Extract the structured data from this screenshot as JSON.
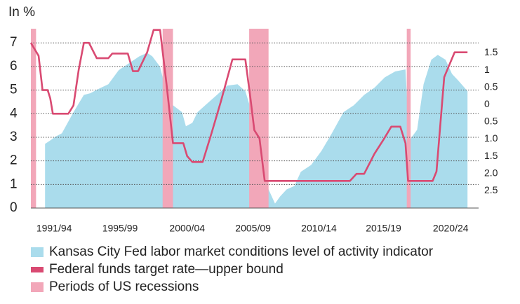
{
  "chart_data": {
    "type": "line",
    "y_label": "In %",
    "xlim": [
      1991.0,
      2024.9
    ],
    "ylim": [
      0,
      7.6
    ],
    "y2lim": [
      -3.0,
      2.2
    ],
    "yticks": [
      0,
      1,
      2,
      3,
      4,
      5,
      6,
      7
    ],
    "y2ticks": [
      1.5,
      1.0,
      0.5,
      0.0,
      {
        "value": -0.5,
        "label": "0.5"
      },
      {
        "value": -1.0,
        "label": "1.0"
      },
      {
        "value": -1.5,
        "label": "1.5"
      },
      {
        "value": -2.0,
        "label": "2.0"
      },
      {
        "value": -2.5,
        "label": "2.5"
      }
    ],
    "xticks": [
      {
        "value": 1992.8,
        "label": "1991/94"
      },
      {
        "value": 1997.9,
        "label": "1995/99"
      },
      {
        "value": 2003.1,
        "label": "2000/04"
      },
      {
        "value": 2008.2,
        "label": "2005/09"
      },
      {
        "value": 2013.3,
        "label": "2010/14"
      },
      {
        "value": 2018.3,
        "label": "2015/19"
      },
      {
        "value": 2023.5,
        "label": "2020/24"
      }
    ],
    "grid": true,
    "series": [
      {
        "name": "Kansas City Fed labor market conditions level of activity indicator",
        "type": "area",
        "axis": "y2",
        "color": "#aadcec",
        "x": [
          1992.1,
          1992.5,
          1992.9,
          1993.4,
          1993.7,
          1994.3,
          1995.1,
          1995.6,
          1996.2,
          1997.0,
          1997.8,
          1998.6,
          1999.4,
          2000.0,
          2000.4,
          2001.0,
          2001.6,
          2002.0,
          2002.7,
          2003.0,
          2003.5,
          2003.9,
          2004.5,
          2005.4,
          2006.2,
          2007.0,
          2007.6,
          2007.9,
          2008.6,
          2009.4,
          2009.9,
          2010.3,
          2010.8,
          2011.4,
          2011.9,
          2012.7,
          2013.5,
          2014.3,
          2015.2,
          2016.0,
          2016.8,
          2017.6,
          2018.4,
          2019.2,
          2020.0,
          2020.3,
          2020.9,
          2021.4,
          2022.0,
          2022.5,
          2023.1,
          2023.6,
          2024.1,
          2024.8
        ],
        "values": [
          -1.14,
          -1.04,
          -0.93,
          -0.83,
          -0.63,
          -0.22,
          0.28,
          0.33,
          0.45,
          0.59,
          1.0,
          1.2,
          1.4,
          1.5,
          1.4,
          1.1,
          0.18,
          -0.02,
          -0.22,
          -0.63,
          -0.53,
          -0.22,
          -0.02,
          0.28,
          0.55,
          0.59,
          0.39,
          0.02,
          -1.04,
          -2.46,
          -2.87,
          -2.66,
          -2.46,
          -2.36,
          -1.95,
          -1.75,
          -1.34,
          -0.83,
          -0.22,
          -0.02,
          0.28,
          0.49,
          0.79,
          0.96,
          1.02,
          -1.04,
          -0.73,
          0.59,
          1.3,
          1.44,
          1.3,
          0.89,
          0.69,
          0.39
        ]
      },
      {
        "name": "Federal funds target rate—upper bound",
        "type": "line",
        "color": "#d94a72",
        "x": [
          1991.0,
          1991.6,
          1991.9,
          1992.3,
          1992.5,
          1992.7,
          1993.9,
          1994.3,
          1994.7,
          1995.1,
          1995.5,
          1996.1,
          1997.0,
          1997.3,
          1998.5,
          1998.9,
          1999.3,
          2000.0,
          2000.5,
          2001.0,
          2001.5,
          2002.0,
          2002.8,
          2003.1,
          2003.5,
          2004.3,
          2005.0,
          2005.7,
          2006.6,
          2007.6,
          2008.0,
          2008.3,
          2008.7,
          2009.1,
          2015.7,
          2016.2,
          2016.8,
          2017.6,
          2018.3,
          2018.9,
          2019.6,
          2020.0,
          2020.2,
          2022.1,
          2022.4,
          2023.0,
          2023.8,
          2024.8
        ],
        "values": [
          7.0,
          6.45,
          5.0,
          5.0,
          4.65,
          4.0,
          4.0,
          4.35,
          5.85,
          7.0,
          7.0,
          6.35,
          6.35,
          6.55,
          6.55,
          5.8,
          5.8,
          6.6,
          7.55,
          7.55,
          5.25,
          2.75,
          2.75,
          2.2,
          1.95,
          1.95,
          3.2,
          4.5,
          6.3,
          6.3,
          4.65,
          3.3,
          2.95,
          1.15,
          1.15,
          1.45,
          1.45,
          2.3,
          2.9,
          3.45,
          3.45,
          2.75,
          1.15,
          1.15,
          1.55,
          5.55,
          6.6,
          6.6
        ]
      }
    ],
    "recessions": {
      "name": "Periods of US recessions",
      "color": "#f2a7b9",
      "periods": [
        [
          1991.0,
          1991.4
        ],
        [
          2001.2,
          2002.0
        ],
        [
          2007.9,
          2009.4
        ],
        [
          2020.1,
          2020.4
        ]
      ]
    }
  }
}
